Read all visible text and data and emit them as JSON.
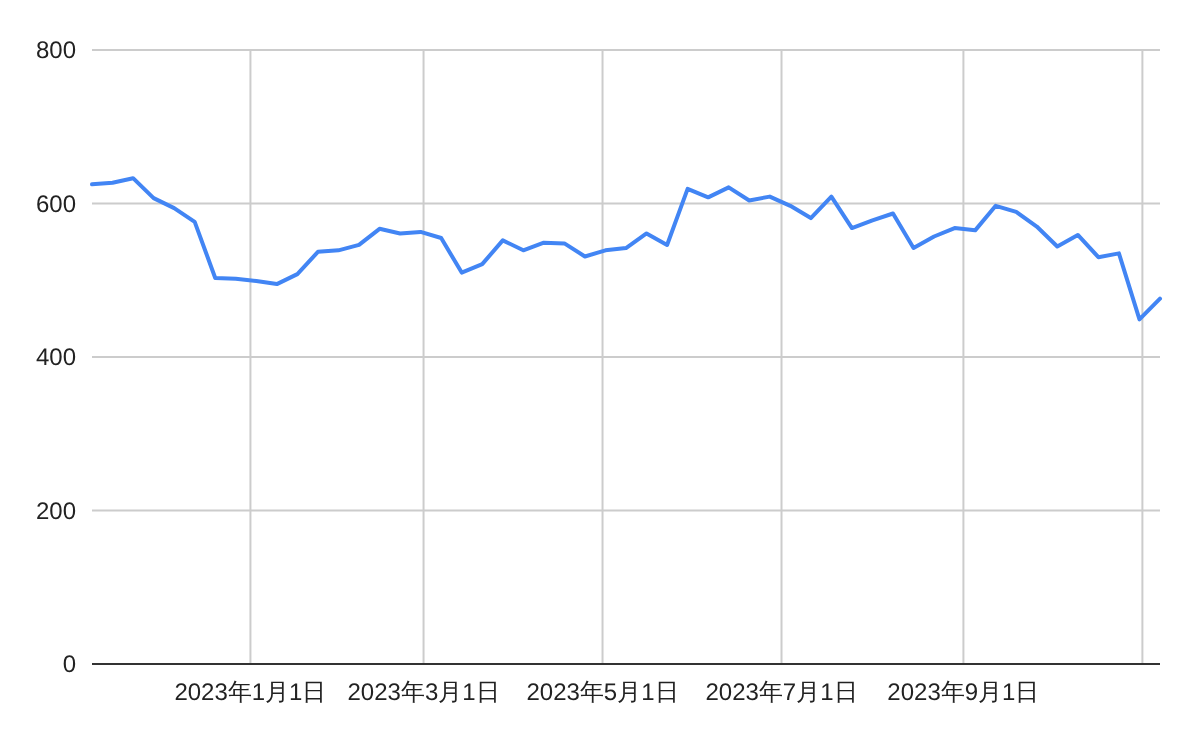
{
  "chart_data": {
    "type": "line",
    "x": [
      "2022-11-08",
      "2022-11-15",
      "2022-11-22",
      "2022-11-29",
      "2022-12-06",
      "2022-12-13",
      "2022-12-20",
      "2022-12-27",
      "2023-01-03",
      "2023-01-10",
      "2023-01-17",
      "2023-01-24",
      "2023-01-31",
      "2023-02-07",
      "2023-02-14",
      "2023-02-21",
      "2023-02-28",
      "2023-03-07",
      "2023-03-14",
      "2023-03-21",
      "2023-03-28",
      "2023-04-04",
      "2023-04-11",
      "2023-04-18",
      "2023-04-25",
      "2023-05-02",
      "2023-05-09",
      "2023-05-16",
      "2023-05-23",
      "2023-05-30",
      "2023-06-06",
      "2023-06-13",
      "2023-06-20",
      "2023-06-27",
      "2023-07-04",
      "2023-07-11",
      "2023-07-18",
      "2023-07-25",
      "2023-08-01",
      "2023-08-08",
      "2023-08-15",
      "2023-08-22",
      "2023-08-29",
      "2023-09-05",
      "2023-09-12",
      "2023-09-19",
      "2023-09-26",
      "2023-10-03",
      "2023-10-10",
      "2023-10-17",
      "2023-10-24",
      "2023-10-31",
      "2023-11-07"
    ],
    "series": [
      {
        "color": "#4285f4",
        "values": [
          625,
          627,
          633,
          607,
          594,
          576,
          503,
          502,
          499,
          495,
          508,
          537,
          539,
          546,
          567,
          561,
          563,
          555,
          510,
          521,
          552,
          539,
          549,
          548,
          531,
          539,
          542,
          561,
          546,
          619,
          608,
          621,
          604,
          609,
          597,
          581,
          609,
          568,
          578,
          587,
          542,
          557,
          568,
          565,
          597,
          589,
          570,
          544,
          559,
          530,
          535,
          449,
          476
        ]
      }
    ],
    "xlim": [
      "2022-11-08",
      "2023-11-07"
    ],
    "xticks": [
      {
        "value": "2023-01-01",
        "label": "2023年1月1日"
      },
      {
        "value": "2023-03-01",
        "label": "2023年3月1日"
      },
      {
        "value": "2023-05-01",
        "label": "2023年5月1日"
      },
      {
        "value": "2023-07-01",
        "label": "2023年7月1日"
      },
      {
        "value": "2023-09-01",
        "label": "2023年9月1日"
      },
      {
        "value": "2023-11-01",
        "label": null
      }
    ],
    "ylim": [
      0,
      800
    ],
    "yticks": [
      0,
      200,
      400,
      600,
      800
    ],
    "grid": true,
    "marker": "none",
    "line_style": "solid"
  }
}
